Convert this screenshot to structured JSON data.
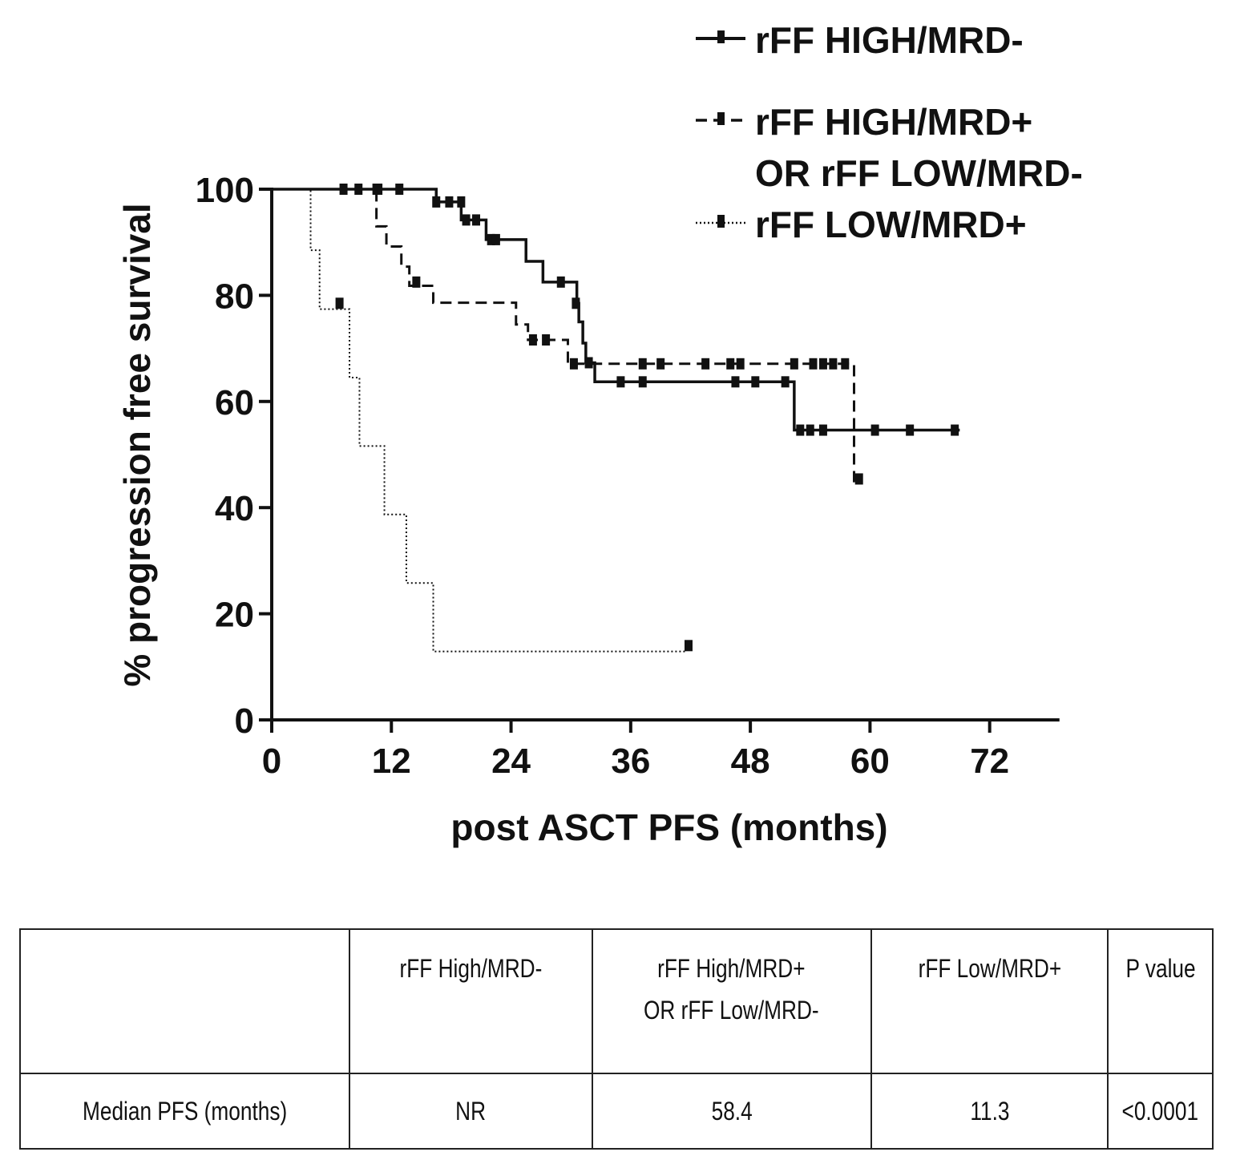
{
  "chart_data": {
    "type": "line",
    "subtype": "kaplan-meier step",
    "title": "",
    "xlabel": "post ASCT PFS (months)",
    "ylabel": "% progression free survival",
    "xlim": [
      0,
      79
    ],
    "ylim": [
      0,
      100
    ],
    "xticks": [
      0,
      12,
      24,
      36,
      48,
      60,
      72
    ],
    "yticks": [
      0,
      20,
      40,
      60,
      80,
      100
    ],
    "grid": false,
    "legend_position": "top-right",
    "series": [
      {
        "name": "rFF HIGH/MRD-",
        "line_style": "solid",
        "color": "#111111",
        "steps": [
          [
            0,
            100
          ],
          [
            16.5,
            97.6
          ],
          [
            19,
            94.2
          ],
          [
            21.5,
            90.5
          ],
          [
            25.5,
            86.4
          ],
          [
            27.2,
            82.5
          ],
          [
            30.6,
            78.5
          ],
          [
            30.8,
            75.0
          ],
          [
            31.2,
            71.0
          ],
          [
            31.5,
            67.3
          ],
          [
            32.4,
            63.7
          ],
          [
            52.4,
            54.6
          ],
          [
            69,
            54.6
          ]
        ],
        "censors": [
          [
            7.2,
            100
          ],
          [
            8.7,
            100
          ],
          [
            10.5,
            100
          ],
          [
            10.7,
            100
          ],
          [
            12.8,
            100
          ],
          [
            16.5,
            97.6
          ],
          [
            17.8,
            97.6
          ],
          [
            19,
            97.6
          ],
          [
            19.5,
            94.2
          ],
          [
            20.5,
            94.2
          ],
          [
            22,
            90.5
          ],
          [
            22.5,
            90.5
          ],
          [
            29,
            82.5
          ],
          [
            30.5,
            78.5
          ],
          [
            31.8,
            67.3
          ],
          [
            35,
            63.7
          ],
          [
            37.2,
            63.7
          ],
          [
            46.5,
            63.7
          ],
          [
            48.5,
            63.7
          ],
          [
            51.5,
            63.7
          ],
          [
            53,
            54.6
          ],
          [
            54,
            54.6
          ],
          [
            55.3,
            54.6
          ],
          [
            60.5,
            54.6
          ],
          [
            64,
            54.6
          ],
          [
            68.5,
            54.6
          ]
        ]
      },
      {
        "name": "rFF HIGH/MRD+\nOR rFF LOW/MRD-",
        "line_style": "dashed",
        "color": "#111111",
        "steps": [
          [
            0,
            100
          ],
          [
            10.5,
            93.0
          ],
          [
            11.5,
            89.2
          ],
          [
            13,
            85.4
          ],
          [
            13.8,
            81.8
          ],
          [
            16.2,
            78.6
          ],
          [
            24.5,
            74.5
          ],
          [
            25.7,
            71.6
          ],
          [
            29.7,
            67.1
          ],
          [
            58.4,
            45.0
          ],
          [
            58.9,
            45.0
          ]
        ],
        "censors": [
          [
            14.5,
            82.5
          ],
          [
            26.2,
            71.6
          ],
          [
            27.5,
            71.6
          ],
          [
            30.3,
            67.1
          ],
          [
            37.2,
            67.1
          ],
          [
            39,
            67.1
          ],
          [
            43.5,
            67.1
          ],
          [
            46,
            67.1
          ],
          [
            47,
            67.1
          ],
          [
            52.4,
            67.1
          ],
          [
            54.3,
            67.1
          ],
          [
            55.3,
            67.1
          ],
          [
            56.3,
            67.1
          ],
          [
            57.5,
            67.1
          ],
          [
            58.9,
            45.4
          ]
        ]
      },
      {
        "name": "rFF LOW/MRD+",
        "line_style": "dotted",
        "color": "#111111",
        "steps": [
          [
            0,
            100
          ],
          [
            3.9,
            88.5
          ],
          [
            4.8,
            77.4
          ],
          [
            7.8,
            64.5
          ],
          [
            8.8,
            51.6
          ],
          [
            11.3,
            38.7
          ],
          [
            13.5,
            25.8
          ],
          [
            16.2,
            12.9
          ],
          [
            41.5,
            12.9
          ]
        ],
        "censors": [
          [
            6.8,
            78.5
          ],
          [
            41.8,
            14.0
          ]
        ]
      }
    ]
  },
  "table": {
    "headers": [
      "",
      "rFF High/MRD-",
      "rFF High/MRD+\nOR rFF Low/MRD-",
      "rFF Low/MRD+",
      "P value"
    ],
    "rows": [
      [
        "Median PFS (months)",
        "NR",
        "58.4",
        "11.3",
        "<0.0001"
      ]
    ]
  }
}
